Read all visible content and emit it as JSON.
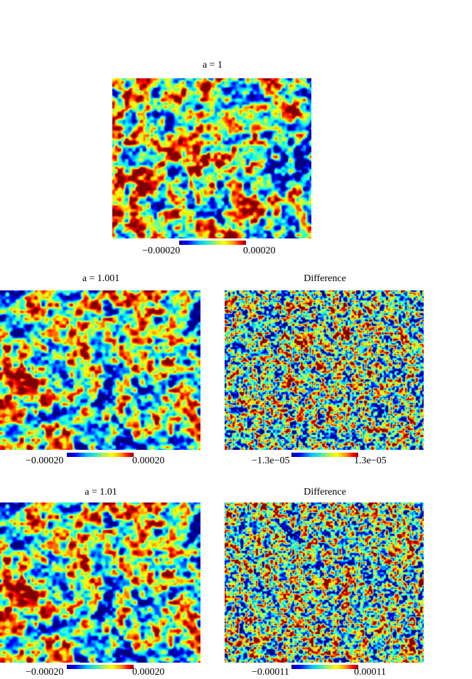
{
  "panels": [
    {
      "id": "p1",
      "title": "a = 1",
      "cbar_min": "−0.00020",
      "cbar_max": "0.00020",
      "kind": "map",
      "seed": 11
    },
    {
      "id": "p2",
      "title": "a = 1.001",
      "cbar_min": "−0.00020",
      "cbar_max": "0.00020",
      "kind": "map",
      "seed": 11
    },
    {
      "id": "p3",
      "title": "Difference",
      "cbar_min": "−1.3e−05",
      "cbar_max": "1.3e−05",
      "kind": "diff",
      "seed": 23
    },
    {
      "id": "p4",
      "title": "a = 1.01",
      "cbar_min": "−0.00020",
      "cbar_max": "0.00020",
      "kind": "map",
      "seed": 11
    },
    {
      "id": "p5",
      "title": "Difference",
      "cbar_min": "−0.00011",
      "cbar_max": "0.00011",
      "kind": "diff",
      "seed": 37
    }
  ],
  "colormap": "jet"
}
